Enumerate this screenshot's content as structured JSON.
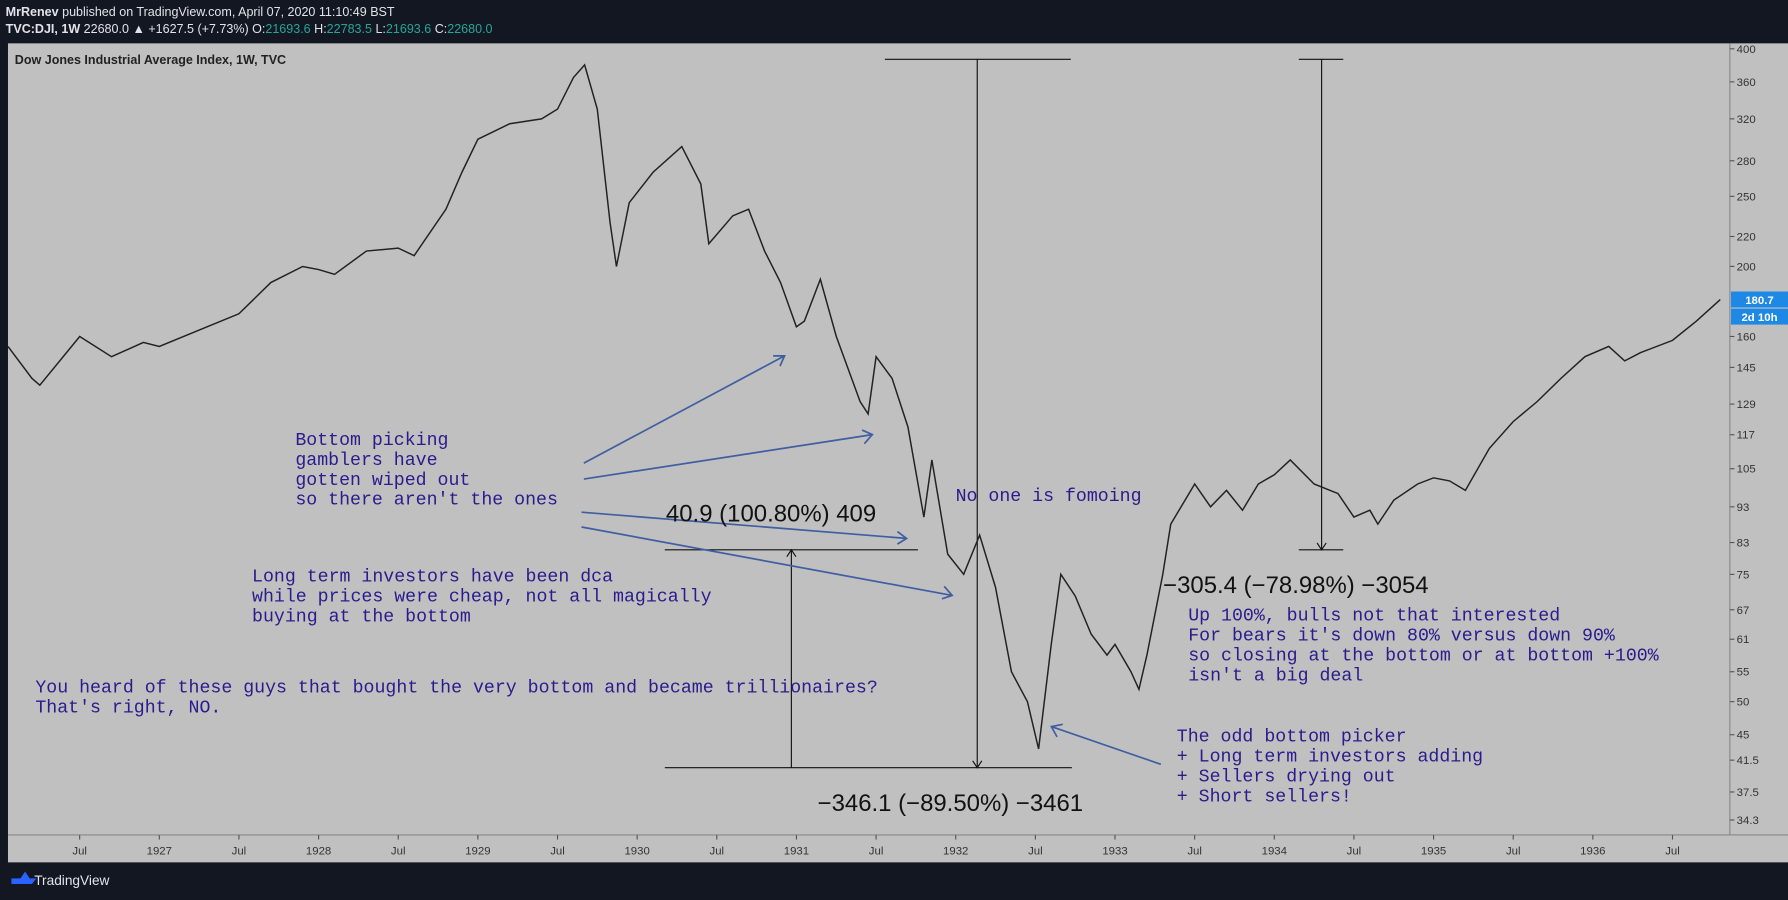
{
  "header": {
    "author": "MrRenev",
    "published": "published on TradingView.com, April 07, 2020 11:10:49 BST",
    "symbol": "TVC:DJI, 1W",
    "last": "22680.0",
    "change": "▲ +1627.5 (+7.73%)",
    "ohlc": [
      {
        "label": "O:",
        "value": "21693.6"
      },
      {
        "label": "H:",
        "value": "22783.5"
      },
      {
        "label": "L:",
        "value": "21693.6"
      },
      {
        "label": "C:",
        "value": "22680.0"
      }
    ]
  },
  "chart_data": {
    "type": "line",
    "title": "Dow Jones Industrial Average Index, 1W, TVC",
    "color": "#222222",
    "log_scale": true,
    "x": [
      1926.05,
      1926.2,
      1926.25,
      1926.5,
      1926.7,
      1926.9,
      1927.0,
      1927.3,
      1927.5,
      1927.7,
      1927.9,
      1928.0,
      1928.1,
      1928.3,
      1928.5,
      1928.6,
      1928.8,
      1928.9,
      1929.0,
      1929.2,
      1929.4,
      1929.5,
      1929.6,
      1929.67,
      1929.75,
      1929.83,
      1929.87,
      1929.95,
      1930.1,
      1930.28,
      1930.4,
      1930.45,
      1930.6,
      1930.7,
      1930.8,
      1930.9,
      1931.0,
      1931.05,
      1931.15,
      1931.25,
      1931.4,
      1931.45,
      1931.5,
      1931.6,
      1931.7,
      1931.8,
      1931.85,
      1931.95,
      1932.05,
      1932.15,
      1932.25,
      1932.35,
      1932.45,
      1932.52,
      1932.6,
      1932.66,
      1932.75,
      1932.85,
      1932.95,
      1933.0,
      1933.1,
      1933.15,
      1933.2,
      1933.3,
      1933.35,
      1933.5,
      1933.6,
      1933.7,
      1933.8,
      1933.9,
      1934.0,
      1934.1,
      1934.25,
      1934.4,
      1934.5,
      1934.6,
      1934.65,
      1934.75,
      1934.9,
      1935.0,
      1935.1,
      1935.2,
      1935.35,
      1935.5,
      1935.65,
      1935.8,
      1935.95,
      1936.1,
      1936.2,
      1936.3,
      1936.5,
      1936.65,
      1936.8
    ],
    "values": [
      155,
      140,
      137,
      160,
      150,
      157,
      155,
      165,
      172,
      190,
      200,
      198,
      195,
      210,
      212,
      207,
      240,
      270,
      300,
      315,
      320,
      330,
      365,
      380,
      330,
      230,
      200,
      245,
      270,
      293,
      260,
      215,
      235,
      240,
      210,
      190,
      165,
      168,
      192,
      160,
      130,
      125,
      150,
      140,
      120,
      90,
      108,
      80,
      75,
      85,
      72,
      55,
      50,
      43,
      60,
      75,
      70,
      62,
      58,
      60,
      55,
      52,
      58,
      75,
      88,
      100,
      93,
      98,
      92,
      100,
      103,
      108,
      100,
      97,
      90,
      92,
      88,
      95,
      100,
      102,
      101,
      98,
      112,
      122,
      130,
      140,
      150,
      155,
      148,
      152,
      158,
      168,
      180
    ],
    "xlim": [
      1926.05,
      1936.86
    ],
    "xticks": [
      {
        "value": 1926.5,
        "label": "Jul"
      },
      1927,
      {
        "value": 1927.5,
        "label": "Jul"
      },
      1928,
      {
        "value": 1928.5,
        "label": "Jul"
      },
      1929,
      {
        "value": 1929.5,
        "label": "Jul"
      },
      1930,
      {
        "value": 1930.5,
        "label": "Jul"
      },
      1931,
      {
        "value": 1931.5,
        "label": "Jul"
      },
      1932,
      {
        "value": 1932.5,
        "label": "Jul"
      },
      1933,
      {
        "value": 1933.5,
        "label": "Jul"
      },
      1934,
      {
        "value": 1934.5,
        "label": "Jul"
      },
      1935,
      {
        "value": 1935.5,
        "label": "Jul"
      },
      1936,
      {
        "value": 1936.5,
        "label": "Jul"
      }
    ],
    "ylim": [
      32.7,
      407
    ],
    "yticks": [
      400,
      360,
      320,
      280,
      250,
      220,
      200,
      160,
      145,
      129,
      117,
      105,
      93,
      83,
      75,
      67,
      61,
      55,
      50,
      45,
      41.5,
      37.5,
      34.3
    ],
    "price_label": "180.7",
    "countdown": "2d 10h",
    "annotations": [
      [
        "Bottom picking",
        "gamblers have",
        "gotten wiped out",
        "so there aren't the ones"
      ],
      [
        "Long term investors have been dca",
        "while prices were cheap, not all magically",
        "buying at the bottom"
      ],
      [
        "You heard of these guys that bought the very bottom and became trillionaires?",
        "That's right, NO."
      ],
      [
        "No one is fomoing"
      ],
      [
        "Up 100%, bulls not that interested",
        "For bears it's down 80% versus down 90%",
        "so closing at the bottom or at bottom +100%",
        "isn't a big deal"
      ],
      [
        "The odd bottom picker",
        "+ Long term investors adding",
        "+ Sellers drying out",
        "+ Short sellers!"
      ]
    ],
    "measurements": [
      "40.9 (100.80%) 409",
      "−346.1 (−89.50%) −3461",
      "−305.4 (−78.98%) −3054"
    ]
  },
  "footer": {
    "brand": "TradingView"
  }
}
